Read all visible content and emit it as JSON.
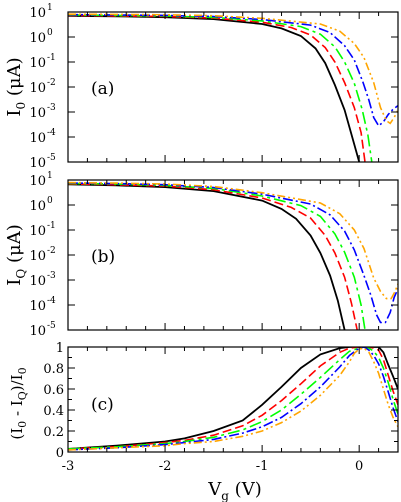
{
  "chart_data": [
    {
      "type": "line",
      "panel_label": "(a)",
      "ylabel_main": "I",
      "ylabel_sub": "0",
      "ylabel_unit": " (μA)",
      "yscale": "log",
      "xlim": [
        -3,
        0.4
      ],
      "ylim": [
        1e-05,
        10
      ],
      "xticks": [
        -3,
        -2,
        -1,
        0
      ],
      "ytick_values": [
        1e-05,
        0.0001,
        0.001,
        0.01,
        0.1,
        1,
        10
      ],
      "ytick_labels": [
        {
          "b": "10",
          "e": "-5"
        },
        {
          "b": "10",
          "e": "-4"
        },
        {
          "b": "10",
          "e": "-3"
        },
        {
          "b": "10",
          "e": "-2"
        },
        {
          "b": "10",
          "e": "-1"
        },
        {
          "b": "10",
          "e": "0"
        },
        {
          "b": "10",
          "e": "1"
        }
      ],
      "series": [
        {
          "color": "#000000",
          "dash": "",
          "x": [
            -3,
            -2.5,
            -2,
            -1.5,
            -1,
            -0.8,
            -0.6,
            -0.45,
            -0.35,
            -0.25,
            -0.15,
            -0.05,
            0.0
          ],
          "y": [
            7.0,
            6.7,
            6.2,
            5.2,
            3.3,
            2.2,
            1.1,
            0.35,
            0.09,
            0.012,
            0.0012,
            5e-05,
            1e-05
          ]
        },
        {
          "color": "#ff0000",
          "dash": "9,4",
          "x": [
            -3,
            -2.5,
            -2,
            -1.5,
            -1,
            -0.7,
            -0.5,
            -0.35,
            -0.25,
            -0.15,
            -0.05,
            0.02,
            0.06
          ],
          "y": [
            7.3,
            7.0,
            6.6,
            5.7,
            3.9,
            2.4,
            1.2,
            0.38,
            0.1,
            0.015,
            0.0015,
            0.00015,
            1e-05
          ]
        },
        {
          "color": "#00ff00",
          "dash": "12,4,3,4",
          "x": [
            -3,
            -2.5,
            -2,
            -1.5,
            -1,
            -0.6,
            -0.4,
            -0.25,
            -0.15,
            -0.05,
            0.03,
            0.09,
            0.13
          ],
          "y": [
            7.6,
            7.3,
            6.9,
            6.1,
            4.4,
            2.6,
            1.3,
            0.4,
            0.1,
            0.014,
            0.0013,
            0.00012,
            1e-05
          ]
        },
        {
          "color": "#0000ff",
          "dash": "10,3,2,3",
          "x": [
            -3,
            -2.5,
            -2,
            -1.5,
            -1,
            -0.5,
            -0.3,
            -0.15,
            -0.05,
            0.04,
            0.1,
            0.15,
            0.2,
            0.25,
            0.3,
            0.35,
            0.4
          ],
          "y": [
            7.9,
            7.6,
            7.3,
            6.6,
            5.0,
            3.0,
            1.5,
            0.45,
            0.12,
            0.015,
            0.003,
            0.0006,
            0.00028,
            0.0004,
            0.0008,
            0.0013,
            0.0018
          ]
        },
        {
          "color": "#ffa500",
          "dash": "8,3,2,3,2,3",
          "x": [
            -3,
            -2.5,
            -2,
            -1.5,
            -1,
            -0.4,
            -0.2,
            -0.05,
            0.05,
            0.15,
            0.22,
            0.28,
            0.32,
            0.36,
            0.4
          ],
          "y": [
            8.2,
            8.0,
            7.7,
            7.1,
            5.6,
            3.3,
            1.7,
            0.55,
            0.15,
            0.015,
            0.0015,
            0.00045,
            0.00035,
            0.0006,
            0.0012
          ]
        }
      ]
    },
    {
      "type": "line",
      "panel_label": "(b)",
      "ylabel_main": "I",
      "ylabel_sub": "Q",
      "ylabel_unit": " (μA)",
      "yscale": "log",
      "xlim": [
        -3,
        0.4
      ],
      "ylim": [
        1e-05,
        10
      ],
      "xticks": [
        -3,
        -2,
        -1,
        0
      ],
      "ytick_values": [
        1e-05,
        0.0001,
        0.001,
        0.01,
        0.1,
        1,
        10
      ],
      "ytick_labels": [
        {
          "b": "10",
          "e": "-5"
        },
        {
          "b": "10",
          "e": "-4"
        },
        {
          "b": "10",
          "e": "-3"
        },
        {
          "b": "10",
          "e": "-2"
        },
        {
          "b": "10",
          "e": "-1"
        },
        {
          "b": "10",
          "e": "0"
        },
        {
          "b": "10",
          "e": "1"
        }
      ],
      "series": [
        {
          "color": "#000000",
          "dash": "",
          "x": [
            -3,
            -2.5,
            -2,
            -1.5,
            -1,
            -0.8,
            -0.65,
            -0.5,
            -0.4,
            -0.3,
            -0.22,
            -0.15
          ],
          "y": [
            6.7,
            6.1,
            5.2,
            3.6,
            1.5,
            0.7,
            0.28,
            0.06,
            0.012,
            0.0015,
            0.00015,
            1e-05
          ]
        },
        {
          "color": "#ff0000",
          "dash": "9,4",
          "x": [
            -3,
            -2.5,
            -2,
            -1.5,
            -1,
            -0.7,
            -0.5,
            -0.35,
            -0.25,
            -0.15,
            -0.08,
            -0.02
          ],
          "y": [
            7.0,
            6.5,
            5.7,
            4.1,
            1.9,
            0.8,
            0.3,
            0.06,
            0.012,
            0.0013,
            0.00012,
            1e-05
          ]
        },
        {
          "color": "#00ff00",
          "dash": "12,4,3,4",
          "x": [
            -3,
            -2.5,
            -2,
            -1.5,
            -1,
            -0.6,
            -0.4,
            -0.25,
            -0.15,
            -0.05,
            0.02,
            0.06
          ],
          "y": [
            7.3,
            6.9,
            6.1,
            4.6,
            2.3,
            0.95,
            0.35,
            0.07,
            0.013,
            0.0013,
            0.0001,
            1e-05
          ]
        },
        {
          "color": "#0000ff",
          "dash": "10,3,2,3",
          "x": [
            -3,
            -2.5,
            -2,
            -1.5,
            -1,
            -0.5,
            -0.3,
            -0.15,
            -0.05,
            0.05,
            0.12,
            0.18,
            0.22,
            0.27,
            0.32,
            0.36,
            0.4
          ],
          "y": [
            7.6,
            7.2,
            6.5,
            5.0,
            2.7,
            1.1,
            0.4,
            0.09,
            0.016,
            0.0015,
            0.00025,
            4e-05,
            2e-05,
            2e-05,
            5e-05,
            0.0002,
            0.00045
          ]
        },
        {
          "color": "#ffa500",
          "dash": "8,3,2,3,2,3",
          "x": [
            -3,
            -2.5,
            -2,
            -1.5,
            -1,
            -0.4,
            -0.2,
            -0.05,
            0.05,
            0.15,
            0.22,
            0.28,
            0.33,
            0.37,
            0.4
          ],
          "y": [
            7.9,
            7.5,
            6.9,
            5.5,
            3.1,
            1.2,
            0.45,
            0.1,
            0.018,
            0.0012,
            0.00035,
            0.00018,
            0.00018,
            0.00035,
            0.0007
          ]
        }
      ]
    },
    {
      "type": "line",
      "panel_label": "(c)",
      "ylabel_text": "(I",
      "ylabel_parts": [
        {
          "t": "(I",
          "sub": "0"
        },
        {
          "t": " - I",
          "sub": "Q"
        },
        {
          "t": ")/I",
          "sub": "0"
        }
      ],
      "xlabel_main": "V",
      "xlabel_sub": "g",
      "xlabel_unit": " (V)",
      "yscale": "linear",
      "xlim": [
        -3,
        0.4
      ],
      "ylim": [
        0,
        1
      ],
      "xticks": [
        -3,
        -2,
        -1,
        0
      ],
      "xtick_labels": [
        "-3",
        "-2",
        "-1",
        "0"
      ],
      "ytick_values": [
        0,
        0.2,
        0.4,
        0.6,
        0.8,
        1
      ],
      "ytick_labels": [
        "0",
        "0.2",
        "0.4",
        "0.6",
        "0.8",
        "1"
      ],
      "series": [
        {
          "color": "#000000",
          "dash": "",
          "x": [
            -3,
            -2.5,
            -2,
            -1.8,
            -1.5,
            -1.2,
            -1.0,
            -0.8,
            -0.6,
            -0.4,
            -0.2,
            -0.1,
            0.0,
            0.1,
            0.2,
            0.25,
            0.3,
            0.35,
            0.4
          ],
          "y": [
            0.03,
            0.06,
            0.1,
            0.13,
            0.2,
            0.3,
            0.45,
            0.62,
            0.8,
            0.93,
            0.99,
            1.0,
            1.0,
            1.0,
            1.0,
            0.95,
            0.83,
            0.72,
            0.6
          ]
        },
        {
          "color": "#ff0000",
          "dash": "9,4",
          "x": [
            -3,
            -2.5,
            -2,
            -1.8,
            -1.5,
            -1.2,
            -1.0,
            -0.8,
            -0.6,
            -0.4,
            -0.2,
            -0.1,
            0.0,
            0.05,
            0.1,
            0.15,
            0.2,
            0.25,
            0.3,
            0.35,
            0.4
          ],
          "y": [
            0.03,
            0.05,
            0.09,
            0.11,
            0.16,
            0.25,
            0.35,
            0.49,
            0.65,
            0.82,
            0.95,
            0.99,
            1.0,
            1.0,
            1.0,
            0.99,
            0.97,
            0.88,
            0.73,
            0.58,
            0.45
          ]
        },
        {
          "color": "#00ff00",
          "dash": "12,4,3,4",
          "x": [
            -3,
            -2.5,
            -2,
            -1.8,
            -1.5,
            -1.2,
            -1.0,
            -0.8,
            -0.6,
            -0.4,
            -0.2,
            -0.1,
            0.0,
            0.05,
            0.1,
            0.15,
            0.2,
            0.25,
            0.3,
            0.35,
            0.4
          ],
          "y": [
            0.03,
            0.05,
            0.08,
            0.1,
            0.14,
            0.21,
            0.29,
            0.4,
            0.55,
            0.71,
            0.88,
            0.96,
            0.99,
            1.0,
            0.99,
            0.96,
            0.9,
            0.8,
            0.66,
            0.5,
            0.36
          ]
        },
        {
          "color": "#0000ff",
          "dash": "10,3,2,3",
          "x": [
            -3,
            -2.5,
            -2,
            -1.8,
            -1.5,
            -1.2,
            -1.0,
            -0.8,
            -0.6,
            -0.4,
            -0.2,
            -0.1,
            0.0,
            0.05,
            0.1,
            0.15,
            0.2,
            0.25,
            0.3,
            0.35,
            0.4
          ],
          "y": [
            0.02,
            0.04,
            0.07,
            0.09,
            0.12,
            0.18,
            0.24,
            0.33,
            0.46,
            0.62,
            0.81,
            0.92,
            0.99,
            1.0,
            0.97,
            0.92,
            0.84,
            0.72,
            0.57,
            0.42,
            0.29
          ]
        },
        {
          "color": "#ffa500",
          "dash": "8,3,2,3,2,3",
          "x": [
            -3,
            -2.5,
            -2,
            -1.8,
            -1.5,
            -1.2,
            -1.0,
            -0.8,
            -0.6,
            -0.4,
            -0.2,
            -0.1,
            -0.05,
            0.0,
            0.05,
            0.1,
            0.15,
            0.2,
            0.25,
            0.3,
            0.35,
            0.4
          ],
          "y": [
            0.02,
            0.04,
            0.06,
            0.08,
            0.1,
            0.15,
            0.2,
            0.28,
            0.39,
            0.54,
            0.73,
            0.86,
            0.94,
            0.98,
            0.99,
            0.95,
            0.86,
            0.75,
            0.6,
            0.45,
            0.33,
            0.24
          ]
        }
      ]
    }
  ]
}
